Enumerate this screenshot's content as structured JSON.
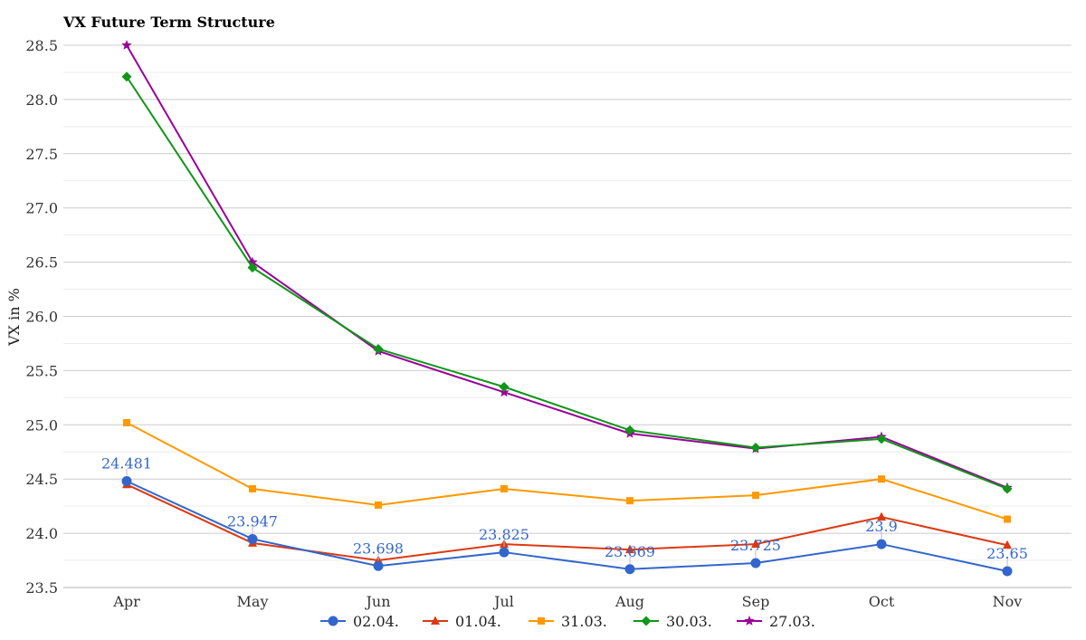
{
  "chart_data": {
    "type": "line",
    "title": "VX Future Term Structure",
    "xlabel": "",
    "ylabel": "VX in %",
    "categories": [
      "Apr",
      "May",
      "Jun",
      "Jul",
      "Aug",
      "Sep",
      "Oct",
      "Nov"
    ],
    "ylim": [
      23.5,
      28.5
    ],
    "y_ticks": [
      "23.5",
      "24.0",
      "24.5",
      "25.0",
      "25.5",
      "26.0",
      "26.5",
      "27.0",
      "27.5",
      "28.0",
      "28.5"
    ],
    "grid": true,
    "legend_position": "bottom",
    "series": [
      {
        "name": "02.04.",
        "color": "#3366cc",
        "marker": "circle",
        "values": [
          24.481,
          23.947,
          23.698,
          23.825,
          23.669,
          23.725,
          23.9,
          23.65
        ],
        "labels": [
          "24.481",
          "23.947",
          "23.698",
          "23.825",
          "23.669",
          "23.725",
          "23.9",
          "23.65"
        ]
      },
      {
        "name": "01.04.",
        "color": "#dc3912",
        "marker": "triangle",
        "values": [
          24.45,
          23.91,
          23.75,
          23.9,
          23.85,
          23.9,
          24.15,
          23.89
        ]
      },
      {
        "name": "31.03.",
        "color": "#ff9900",
        "marker": "square",
        "values": [
          25.02,
          24.41,
          24.26,
          24.41,
          24.3,
          24.35,
          24.5,
          24.13
        ]
      },
      {
        "name": "30.03.",
        "color": "#109618",
        "marker": "diamond",
        "values": [
          28.21,
          26.45,
          25.7,
          25.35,
          24.95,
          24.79,
          24.87,
          24.41
        ]
      },
      {
        "name": "27.03.",
        "color": "#990099",
        "marker": "star",
        "values": [
          28.5,
          26.5,
          25.68,
          25.3,
          24.92,
          24.78,
          24.89,
          24.42
        ]
      }
    ]
  }
}
